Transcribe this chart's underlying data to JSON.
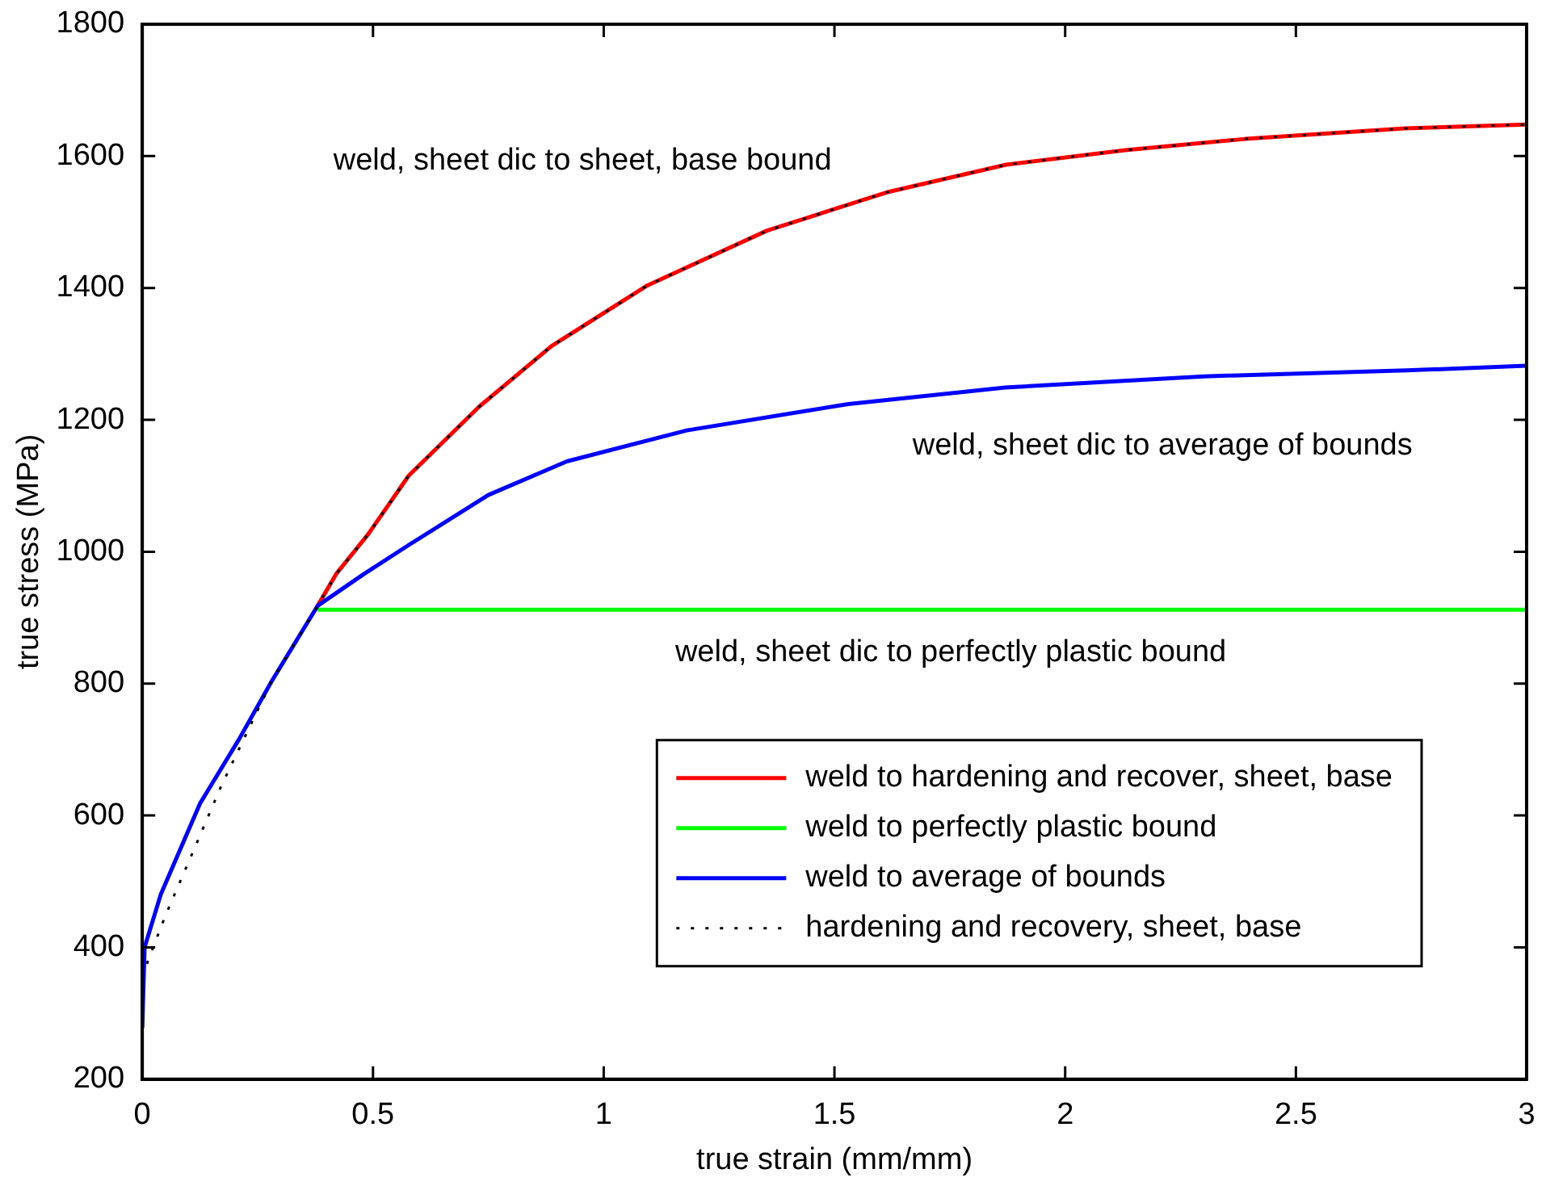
{
  "chart_data": {
    "type": "line",
    "xlabel": "true strain (mm/mm)",
    "ylabel": "true stress (MPa)",
    "xlim": [
      0,
      3
    ],
    "xticks": [
      0,
      0.5,
      1,
      1.5,
      2,
      2.5,
      3
    ],
    "ylim": [
      200,
      1800
    ],
    "yticks": [
      200,
      400,
      600,
      800,
      1000,
      1200,
      1400,
      1600,
      1800
    ],
    "grid": false,
    "legend": "bottom right",
    "marker": "none",
    "annotations": [
      "weld, sheet dic to sheet, base bound",
      "weld, sheet dic to average of bounds",
      "weld, sheet dic to perfectly plastic bound"
    ],
    "series": [
      {
        "name": "weld to hardening and recover, sheet, base",
        "color": "#ff0000",
        "line_style": "solid",
        "x": [
          0.38,
          0.42,
          0.49,
          0.577,
          0.73,
          0.887,
          1.095,
          1.354,
          1.613,
          1.872,
          2.13,
          2.39,
          2.736,
          3
        ],
        "values": [
          918,
          966,
          1027,
          1115,
          1220,
          1312,
          1404,
          1487,
          1545,
          1587,
          1609,
          1626,
          1642,
          1648
        ]
      },
      {
        "name": "weld to perfectly plastic bound",
        "color": "#00ff00",
        "line_style": "solid",
        "x": [
          0.38,
          3
        ],
        "values": [
          912,
          912
        ]
      },
      {
        "name": "weld to average of bounds",
        "color": "#0000ff",
        "line_style": "solid",
        "x": [
          0,
          0.005,
          0.04,
          0.125,
          0.21,
          0.28,
          0.38,
          0.48,
          0.577,
          0.75,
          0.92,
          1.18,
          1.53,
          1.87,
          2.3,
          2.74,
          3
        ],
        "values": [
          278,
          400,
          480,
          618,
          716,
          803,
          918,
          966,
          1010,
          1086,
          1137,
          1184,
          1224,
          1249,
          1266,
          1275,
          1282
        ]
      },
      {
        "name": "hardening and recovery, sheet, base",
        "color": "#000000",
        "line_style": "dotted",
        "x": [
          0.01,
          0.05,
          0.11,
          0.17,
          0.22,
          0.28,
          0.38,
          0.42,
          0.49,
          0.577,
          0.73,
          0.887,
          1.095,
          1.354,
          1.613,
          1.872,
          2.13,
          2.39,
          2.736,
          3
        ],
        "values": [
          375,
          448,
          545,
          643,
          716,
          803,
          918,
          966,
          1027,
          1115,
          1220,
          1312,
          1404,
          1487,
          1545,
          1587,
          1609,
          1626,
          1642,
          1648
        ]
      }
    ]
  }
}
